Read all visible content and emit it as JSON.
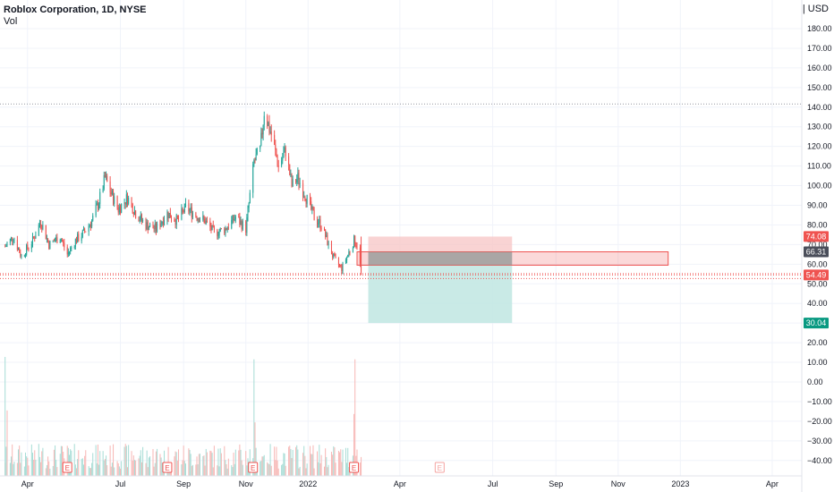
{
  "header": {
    "title": "Roblox Corporation, 1D, NYSE",
    "indicator": "Vol",
    "currency": "USD"
  },
  "colors": {
    "up": "#26a69a",
    "down": "#ef5350",
    "up_vol": "#a8ddd6",
    "down_vol": "#f7b8b6",
    "stop_zone": "#f8c8c8",
    "target_zone": "#bfe6e2",
    "grid": "#f0f3fa",
    "axis_text": "#131722"
  },
  "chart_data": {
    "type": "candlestick",
    "price_axis": {
      "ticks": [
        "180.00",
        "170.00",
        "160.00",
        "150.00",
        "140.00",
        "130.00",
        "120.00",
        "110.00",
        "100.00",
        "90.00",
        "80.00",
        "70.00",
        "60.00",
        "50.00",
        "40.00",
        "30.00",
        "20.00",
        "10.00",
        "0.00",
        "−10.00",
        "−20.00",
        "−30.00",
        "−40.00"
      ],
      "range": [
        -47,
        188
      ]
    },
    "time_axis": {
      "range": [
        "2021-03-05",
        "2023-04-30"
      ],
      "labels": [
        {
          "label": "Apr",
          "date": "2021-04-01"
        },
        {
          "label": "Jul",
          "date": "2021-07-01"
        },
        {
          "label": "Sep",
          "date": "2021-09-01"
        },
        {
          "label": "Nov",
          "date": "2021-11-01"
        },
        {
          "label": "2022",
          "date": "2022-01-01"
        },
        {
          "label": "Apr",
          "date": "2022-04-01"
        },
        {
          "label": "Jul",
          "date": "2022-07-01"
        },
        {
          "label": "Sep",
          "date": "2022-09-01"
        },
        {
          "label": "Nov",
          "date": "2022-11-01"
        },
        {
          "label": "2023",
          "date": "2023-01-01"
        },
        {
          "label": "Apr",
          "date": "2023-04-01"
        }
      ]
    },
    "price_path": [
      [
        "2021-03-10",
        69
      ],
      [
        "2021-03-18",
        74
      ],
      [
        "2021-03-26",
        64
      ],
      [
        "2021-04-06",
        72
      ],
      [
        "2021-04-14",
        82
      ],
      [
        "2021-04-22",
        70
      ],
      [
        "2021-05-03",
        74
      ],
      [
        "2021-05-10",
        65
      ],
      [
        "2021-05-18",
        72
      ],
      [
        "2021-05-26",
        76
      ],
      [
        "2021-06-03",
        82
      ],
      [
        "2021-06-10",
        92
      ],
      [
        "2021-06-16",
        104
      ],
      [
        "2021-06-22",
        96
      ],
      [
        "2021-06-29",
        88
      ],
      [
        "2021-07-08",
        94
      ],
      [
        "2021-07-16",
        86
      ],
      [
        "2021-07-26",
        80
      ],
      [
        "2021-08-05",
        78
      ],
      [
        "2021-08-16",
        86
      ],
      [
        "2021-08-26",
        82
      ],
      [
        "2021-09-03",
        89
      ],
      [
        "2021-09-13",
        85
      ],
      [
        "2021-09-22",
        82
      ],
      [
        "2021-10-01",
        76
      ],
      [
        "2021-10-12",
        78
      ],
      [
        "2021-10-22",
        84
      ],
      [
        "2021-11-01",
        78
      ],
      [
        "2021-11-09",
        112
      ],
      [
        "2021-11-15",
        118
      ],
      [
        "2021-11-19",
        138
      ],
      [
        "2021-11-26",
        126
      ],
      [
        "2021-12-03",
        110
      ],
      [
        "2021-12-10",
        118
      ],
      [
        "2021-12-16",
        100
      ],
      [
        "2021-12-22",
        104
      ],
      [
        "2021-12-30",
        94
      ],
      [
        "2022-01-07",
        84
      ],
      [
        "2022-01-14",
        80
      ],
      [
        "2022-01-21",
        70
      ],
      [
        "2022-01-27",
        62
      ],
      [
        "2022-02-03",
        58
      ],
      [
        "2022-02-10",
        66
      ],
      [
        "2022-02-15",
        72
      ],
      [
        "2022-02-18",
        70
      ],
      [
        "2022-02-22",
        56
      ]
    ],
    "last_candle": {
      "date": "2022-02-22",
      "open": 70,
      "high": 74.08,
      "low": 54.49,
      "close": 56
    }
  },
  "price_badges": [
    {
      "value": "74.08",
      "price": 74.08,
      "color": "#ef5350"
    },
    {
      "value": "66.31",
      "price": 66.31,
      "color": "#4a4e5a"
    },
    {
      "value": "54.49",
      "price": 54.49,
      "color": "#ef5350"
    },
    {
      "value": "30.04",
      "price": 30.04,
      "color": "#089981"
    }
  ],
  "reference_lines": [
    {
      "price": 141.6
    },
    {
      "price": 55.2
    },
    {
      "price": 54.49
    },
    {
      "price": 52.7
    }
  ],
  "position": {
    "entry": 66.31,
    "stop": 74.08,
    "target": 30.04,
    "start": "2022-03-01",
    "end": "2022-07-20"
  },
  "zone_box": {
    "top": 66.3,
    "bottom": 59.5,
    "start": "2022-02-18",
    "end": "2022-12-20"
  },
  "earnings": {
    "label": "E",
    "dates": [
      "2021-05-10",
      "2021-08-16",
      "2021-11-08",
      "2022-02-15",
      "2022-05-10"
    ],
    "future_from": "2022-05-01"
  },
  "volume": {
    "spikes": [
      {
        "date": "2021-03-10",
        "height": 1.0,
        "up": true
      },
      {
        "date": "2021-03-12",
        "height": 0.55,
        "up": false
      },
      {
        "date": "2021-11-09",
        "height": 0.98,
        "up": true
      },
      {
        "date": "2021-11-10",
        "height": 0.45,
        "up": false
      },
      {
        "date": "2022-02-16",
        "height": 0.98,
        "up": false
      },
      {
        "date": "2022-02-15",
        "height": 0.52,
        "up": false
      }
    ]
  }
}
